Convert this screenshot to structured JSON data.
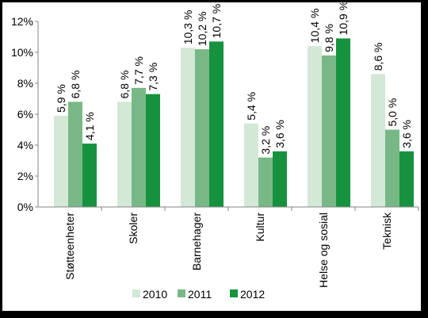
{
  "chart_data": {
    "type": "bar",
    "categories": [
      "Støtteenheter",
      "Skoler",
      "Barnehager",
      "Kultur",
      "Helse og sosial",
      "Teknisk"
    ],
    "series": [
      {
        "name": "2010",
        "color": "#d3e8d6",
        "values": [
          5.9,
          6.8,
          10.3,
          5.4,
          10.4,
          8.6
        ],
        "value_labels": [
          "5,9 %",
          "6,8 %",
          "10,3 %",
          "5,4 %",
          "10,4 %",
          "8,6 %"
        ]
      },
      {
        "name": "2011",
        "color": "#78b886",
        "values": [
          6.8,
          7.7,
          10.2,
          3.2,
          9.8,
          5.0
        ],
        "value_labels": [
          "6,8 %",
          "7,7 %",
          "10,2 %",
          "3,2 %",
          "9,8 %",
          "5,0 %"
        ]
      },
      {
        "name": "2012",
        "color": "#16923f",
        "values": [
          4.1,
          7.3,
          10.7,
          3.6,
          10.9,
          3.6
        ],
        "value_labels": [
          "4,1 %",
          "7,3 %",
          "10,7 %",
          "3,6 %",
          "10,9 %",
          "3,6 %"
        ]
      }
    ],
    "ylim": [
      0,
      12
    ],
    "yticks": [
      {
        "value": 0,
        "label": "0%"
      },
      {
        "value": 2,
        "label": "2%"
      },
      {
        "value": 4,
        "label": "4%"
      },
      {
        "value": 6,
        "label": "6%"
      },
      {
        "value": 8,
        "label": "8%"
      },
      {
        "value": 10,
        "label": "10%"
      },
      {
        "value": 12,
        "label": "12%"
      }
    ],
    "grid": false,
    "legend": "bottom"
  }
}
